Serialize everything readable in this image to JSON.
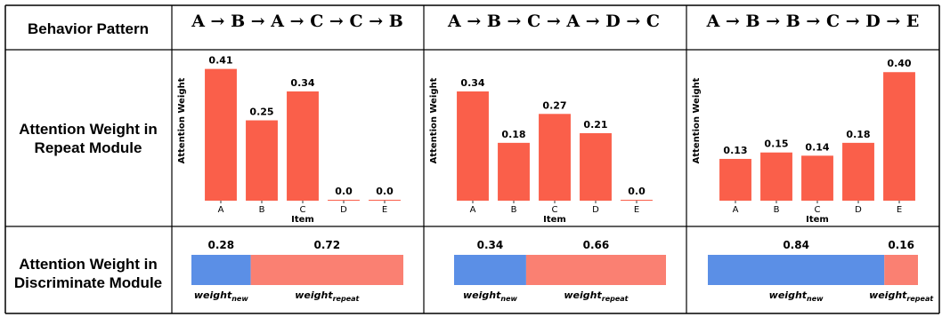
{
  "header": {
    "row_label": "Behavior Pattern",
    "patterns": [
      "A → B → A → C → C → B",
      "A → B → C → A → D → C",
      "A → B → B → C → D → E"
    ]
  },
  "rows": {
    "repeat_label": [
      "Attention Weight in",
      "Repeat Module"
    ],
    "discriminate_label": [
      "Attention Weight in",
      "Discriminate Module"
    ]
  },
  "colors": {
    "bar": "#fa5f4a",
    "new": "#5b8fe6",
    "repeat": "#fa8072"
  },
  "chart_data": [
    {
      "type": "bar",
      "categories": [
        "A",
        "B",
        "C",
        "D",
        "E"
      ],
      "values": [
        0.41,
        0.25,
        0.34,
        0.0,
        0.0
      ],
      "labels": [
        "0.41",
        "0.25",
        "0.34",
        "0.0",
        "0.0"
      ],
      "xlabel": "Item",
      "ylabel": "Attention Weight",
      "ylim": [
        0,
        0.42
      ]
    },
    {
      "type": "bar",
      "categories": [
        "A",
        "B",
        "C",
        "D",
        "E"
      ],
      "values": [
        0.34,
        0.18,
        0.27,
        0.21,
        0.0
      ],
      "labels": [
        "0.34",
        "0.18",
        "0.27",
        "0.21",
        "0.0"
      ],
      "xlabel": "Item",
      "ylabel": "Attention Weight",
      "ylim": [
        0,
        0.42
      ]
    },
    {
      "type": "bar",
      "categories": [
        "A",
        "B",
        "C",
        "D",
        "E"
      ],
      "values": [
        0.13,
        0.15,
        0.14,
        0.18,
        0.4
      ],
      "labels": [
        "0.13",
        "0.15",
        "0.14",
        "0.18",
        "0.40"
      ],
      "xlabel": "Item",
      "ylabel": "Attention Weight",
      "ylim": [
        0,
        0.42
      ]
    },
    {
      "type": "bar",
      "stacked": "horizontal",
      "series": [
        {
          "name": "weight_new",
          "values": [
            0.28,
            0.34,
            0.84
          ]
        },
        {
          "name": "weight_repeat",
          "values": [
            0.72,
            0.66,
            0.16
          ]
        }
      ],
      "labels": [
        [
          "0.28",
          "0.72"
        ],
        [
          "0.34",
          "0.66"
        ],
        [
          "0.84",
          "0.16"
        ]
      ]
    }
  ],
  "legend_labels": {
    "new_base": "weight",
    "new_sub": "new",
    "repeat_base": "weight",
    "repeat_sub": "repeat"
  }
}
